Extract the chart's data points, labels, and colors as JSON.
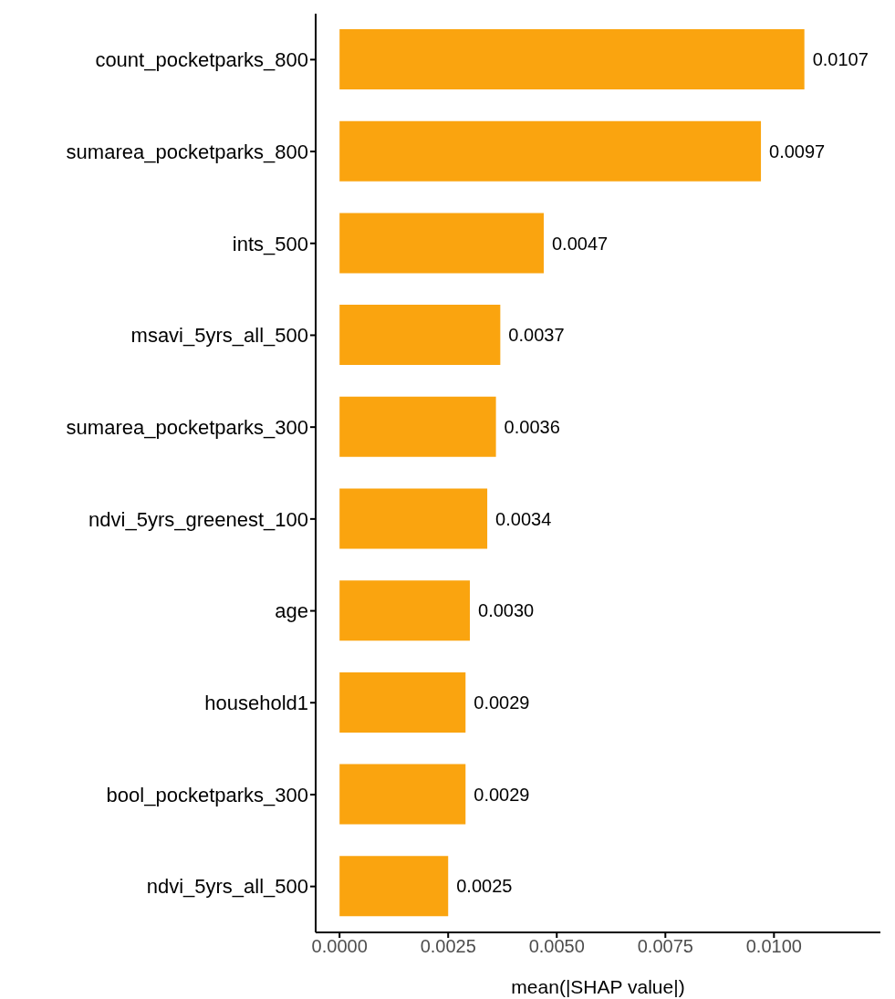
{
  "chart_data": {
    "type": "bar",
    "orientation": "horizontal",
    "xlabel": "mean(|SHAP value|)",
    "categories": [
      "count_pocketparks_800",
      "sumarea_pocketparks_800",
      "ints_500",
      "msavi_5yrs_all_500",
      "sumarea_pocketparks_300",
      "ndvi_5yrs_greenest_100",
      "age",
      "household1",
      "bool_pocketparks_300",
      "ndvi_5yrs_all_500"
    ],
    "values": [
      0.0107,
      0.0097,
      0.0047,
      0.0037,
      0.0036,
      0.0034,
      0.003,
      0.0029,
      0.0029,
      0.0025
    ],
    "value_labels": [
      "0.0107",
      "0.0097",
      "0.0047",
      "0.0037",
      "0.0036",
      "0.0034",
      "0.0030",
      "0.0029",
      "0.0029",
      "0.0025"
    ],
    "color": "#faa40f",
    "xlim": [
      -0.00055,
      0.01245
    ],
    "xticks": [
      {
        "value": 0,
        "label": "0.0000"
      },
      {
        "value": 0.0025,
        "label": "0.0025"
      },
      {
        "value": 0.005,
        "label": "0.0050"
      },
      {
        "value": 0.0075,
        "label": "0.0075"
      },
      {
        "value": 0.01,
        "label": "0.0100"
      }
    ],
    "grid": false,
    "legend": false
  }
}
